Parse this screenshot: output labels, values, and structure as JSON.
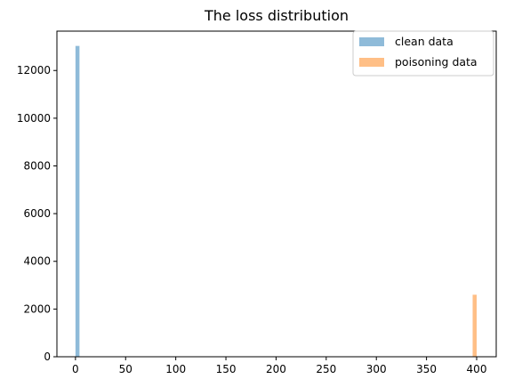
{
  "chart_data": {
    "type": "bar",
    "title": "The loss distribution",
    "xlabel": "",
    "ylabel": "",
    "xlim": [
      -18.5,
      419.5
    ],
    "ylim": [
      0,
      13650
    ],
    "x_ticks": [
      0,
      50,
      100,
      150,
      200,
      250,
      300,
      350,
      400
    ],
    "y_ticks": [
      0,
      2000,
      4000,
      6000,
      8000,
      10000,
      12000
    ],
    "grid": false,
    "legend": "top-right",
    "series": [
      {
        "name": "clean data",
        "color": "#1f77b4",
        "opacity": 0.5,
        "bins": [
          {
            "x0": 0,
            "x1": 4,
            "value": 13030
          }
        ]
      },
      {
        "name": "poisoning data",
        "color": "#ff7f0e",
        "opacity": 0.5,
        "bins": [
          {
            "x0": 396,
            "x1": 400,
            "value": 2600
          }
        ]
      }
    ]
  }
}
